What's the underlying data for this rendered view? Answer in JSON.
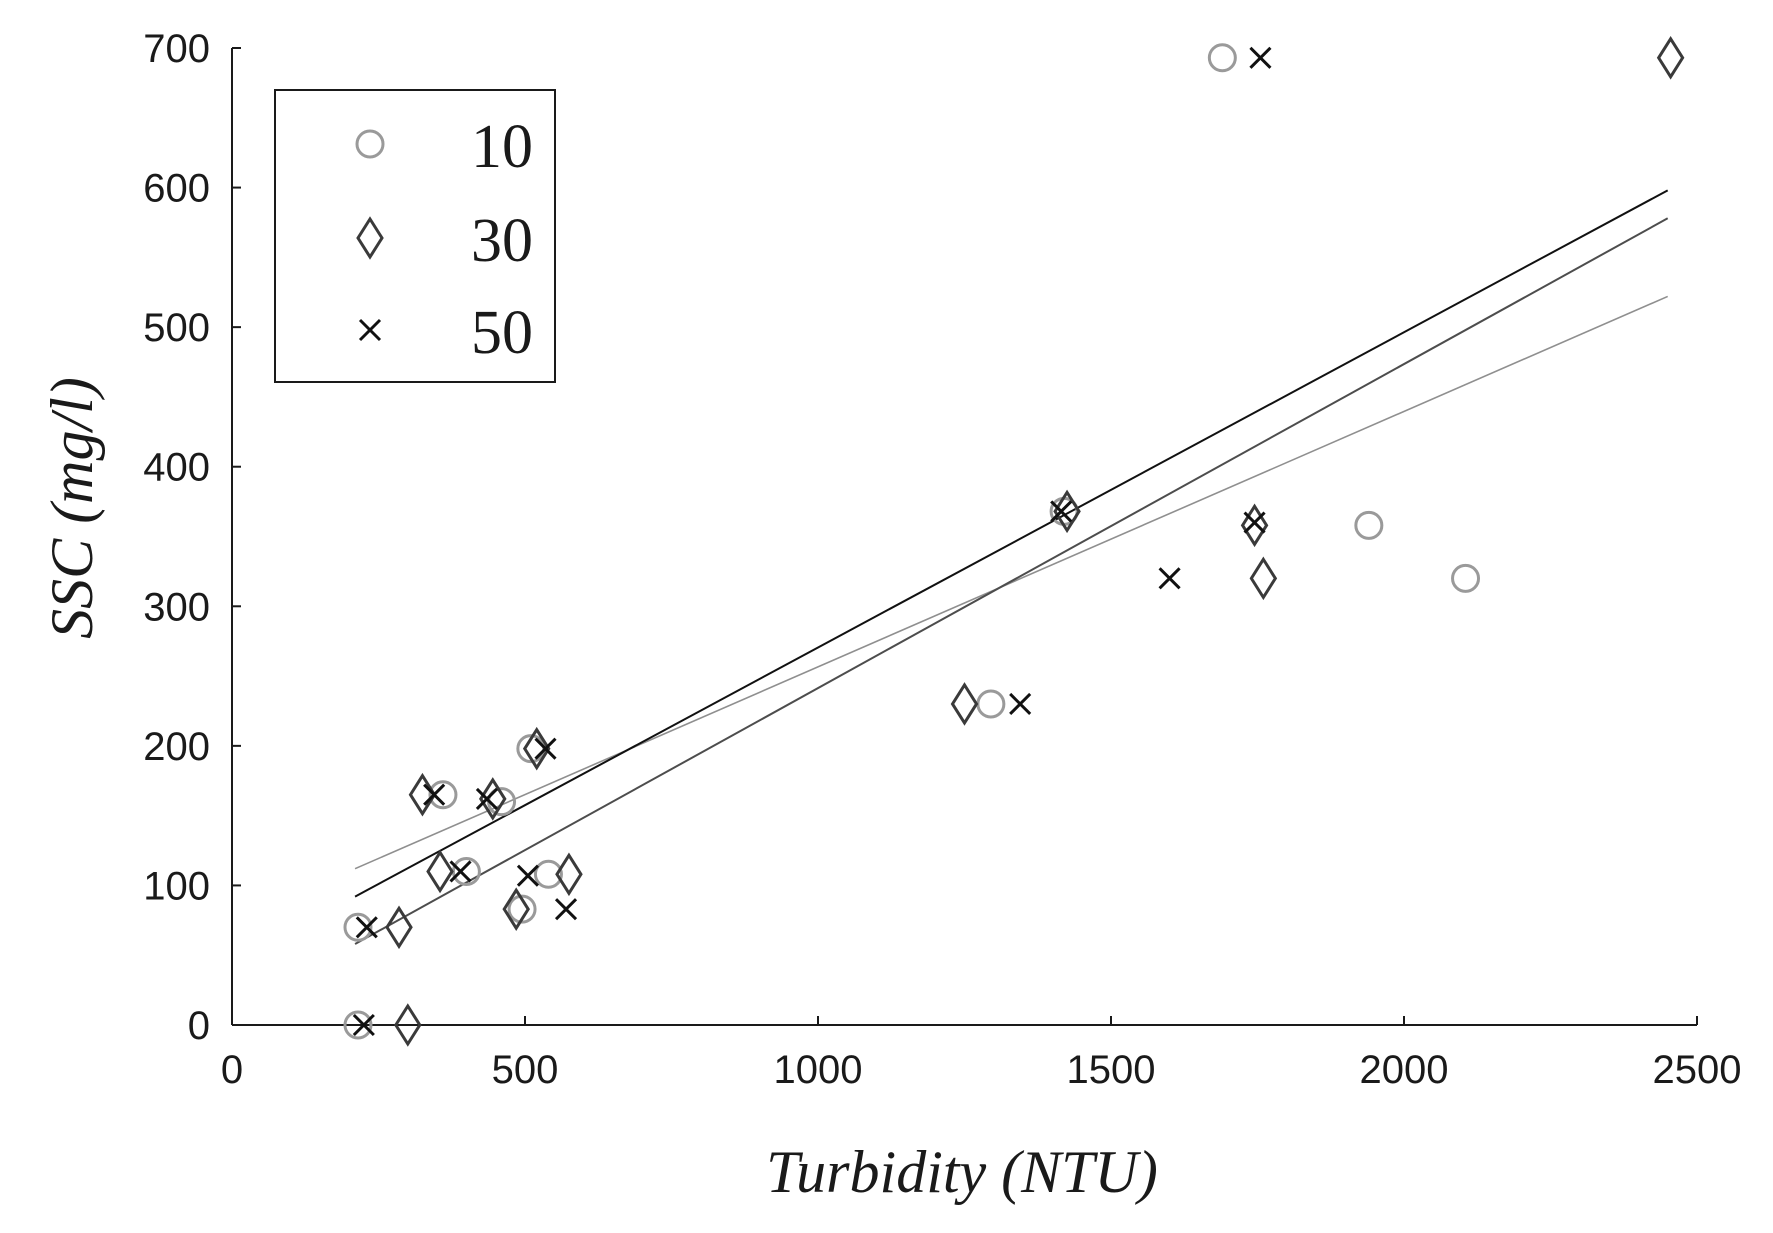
{
  "chart_data": {
    "type": "scatter",
    "xlabel": "Turbidity (NTU)",
    "ylabel": "SSC (mg/l)",
    "xlim": [
      0,
      2500
    ],
    "ylim": [
      0,
      700
    ],
    "xticks": [
      "0",
      "500",
      "1000",
      "1500",
      "2000",
      "2500"
    ],
    "yticks": [
      "0",
      "100",
      "200",
      "300",
      "400",
      "500",
      "600",
      "700"
    ],
    "grid": false,
    "legend_position": "top-left",
    "series": [
      {
        "name": "10",
        "marker": "circle",
        "color": "#9a9a9a",
        "points": [
          [
            215,
            0
          ],
          [
            215,
            70
          ],
          [
            360,
            165
          ],
          [
            460,
            160
          ],
          [
            510,
            198
          ],
          [
            400,
            110
          ],
          [
            540,
            108
          ],
          [
            495,
            83
          ],
          [
            1295,
            230
          ],
          [
            1420,
            368
          ],
          [
            1690,
            693
          ],
          [
            1940,
            358
          ],
          [
            2105,
            320
          ]
        ],
        "fit": {
          "x": [
            210,
            2450
          ],
          "y": [
            112,
            522
          ],
          "color": "#8f8f8f"
        }
      },
      {
        "name": "30",
        "marker": "diamond",
        "color": "#3a3a3a",
        "points": [
          [
            300,
            0
          ],
          [
            285,
            70
          ],
          [
            325,
            165
          ],
          [
            445,
            162
          ],
          [
            520,
            198
          ],
          [
            355,
            110
          ],
          [
            575,
            108
          ],
          [
            485,
            83
          ],
          [
            1250,
            230
          ],
          [
            1425,
            368
          ],
          [
            1745,
            358
          ],
          [
            1760,
            320
          ],
          [
            2455,
            693
          ]
        ],
        "fit": {
          "x": [
            210,
            2450
          ],
          "y": [
            58,
            578
          ],
          "color": "#4d4d4d"
        }
      },
      {
        "name": "50",
        "marker": "x",
        "color": "#111111",
        "points": [
          [
            225,
            0
          ],
          [
            230,
            70
          ],
          [
            345,
            165
          ],
          [
            435,
            162
          ],
          [
            535,
            198
          ],
          [
            390,
            110
          ],
          [
            505,
            107
          ],
          [
            570,
            83
          ],
          [
            1345,
            230
          ],
          [
            1415,
            368
          ],
          [
            1745,
            360
          ],
          [
            1600,
            320
          ],
          [
            1755,
            693
          ]
        ],
        "fit": {
          "x": [
            210,
            2450
          ],
          "y": [
            92,
            598
          ],
          "color": "#111111"
        }
      }
    ]
  }
}
